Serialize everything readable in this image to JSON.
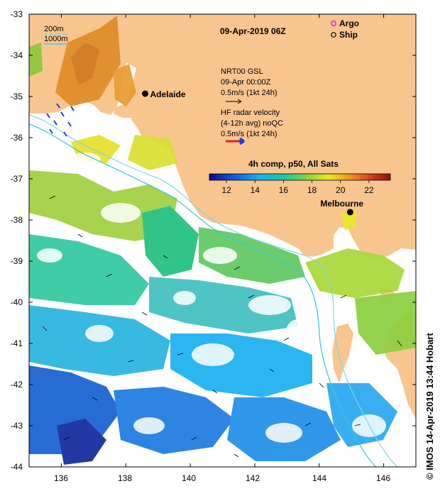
{
  "map": {
    "title": "09-Apr-2019 06Z",
    "x_ticks": [
      "136",
      "138",
      "140",
      "142",
      "144",
      "146"
    ],
    "y_ticks": [
      "-33",
      "-34",
      "-35",
      "-36",
      "-37",
      "-38",
      "-39",
      "-40",
      "-41",
      "-42",
      "-43",
      "-44"
    ],
    "lon_range": [
      135,
      147
    ],
    "lat_range": [
      -44,
      -33
    ],
    "isobaths": [
      "200m",
      "1000m"
    ],
    "legend": {
      "argo": "Argo",
      "ship": "Ship"
    },
    "cities": [
      {
        "name": "Adelaide",
        "lon": 138.6,
        "lat": -34.93
      },
      {
        "name": "Melbourne",
        "lon": 144.96,
        "lat": -37.81
      }
    ],
    "model_label": [
      "NRT00 GSL",
      "09-Apr 00:00Z",
      "0.5m/s (1kt 24h)"
    ],
    "radar_label": [
      "HF radar velocity",
      "(4-12h avg) noQC",
      "0.5m/s (1kt 24h)"
    ],
    "colorbar": {
      "title": "4h comp, p50, All Sats",
      "ticks": [
        "12",
        "14",
        "16",
        "18",
        "20",
        "22"
      ],
      "min": 10.8,
      "max": 23.5
    },
    "credit": "© IMOS 14-Apr-2019 13:44 Hobart",
    "colors": {
      "land": "#f9c58f",
      "ocean": "#ffffff",
      "isobath_shallow": "#7fd8e0",
      "isobath_deep": "#39c6d6",
      "argo": "#e040e0"
    }
  }
}
